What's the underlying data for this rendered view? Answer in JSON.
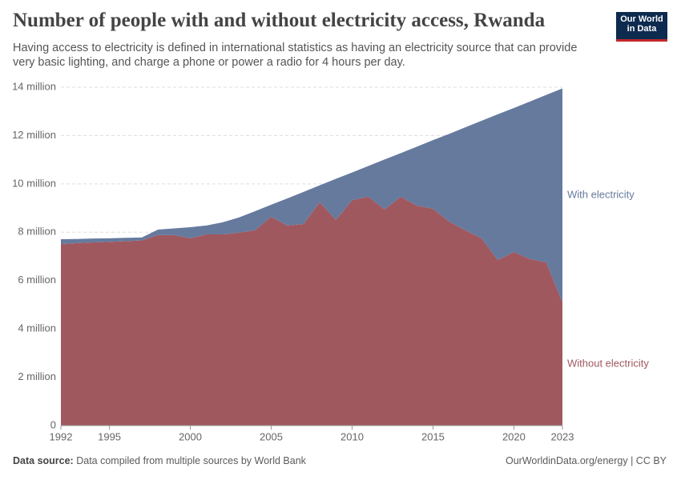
{
  "chart_data": {
    "type": "stacked-area",
    "title": "Number of people with and without electricity access, Rwanda",
    "subtitle": "Having access to electricity is defined in international statistics as having an electricity source that can provide very basic lighting, and charge a phone or power a radio for 4 hours per day.",
    "logo": [
      "Our World",
      "in Data"
    ],
    "source_label": "Data source:",
    "source": "Data compiled from multiple sources by World Bank",
    "credit": "OurWorldinData.org/energy | CC BY",
    "x": [
      1992,
      1993,
      1994,
      1995,
      1996,
      1997,
      1998,
      1999,
      2000,
      2001,
      2002,
      2003,
      2004,
      2005,
      2006,
      2007,
      2008,
      2009,
      2010,
      2011,
      2012,
      2013,
      2014,
      2015,
      2016,
      2017,
      2018,
      2019,
      2020,
      2021,
      2022,
      2023
    ],
    "xlim": [
      1992,
      2023
    ],
    "xticks": [
      1992,
      1995,
      2000,
      2005,
      2010,
      2015,
      2020,
      2023
    ],
    "ylim": [
      0,
      14000000
    ],
    "yticks": [
      0,
      {
        "value": 2000000,
        "label": "2 million"
      },
      {
        "value": 4000000,
        "label": "4 million"
      },
      {
        "value": 6000000,
        "label": "6 million"
      },
      {
        "value": 8000000,
        "label": "8 million"
      },
      {
        "value": 10000000,
        "label": "10 million"
      },
      {
        "value": 12000000,
        "label": "12 million"
      },
      {
        "value": 14000000,
        "label": "14 million"
      }
    ],
    "grid": true,
    "series": [
      {
        "name": "Without electricity",
        "color": "#a0585f",
        "values": [
          7510000,
          7550000,
          7580000,
          7600000,
          7630000,
          7660000,
          7880000,
          7880000,
          7750000,
          7910000,
          7910000,
          7980000,
          8080000,
          8640000,
          8280000,
          8340000,
          9240000,
          8510000,
          9330000,
          9470000,
          8940000,
          9470000,
          9100000,
          8970000,
          8440000,
          8080000,
          7750000,
          6850000,
          7180000,
          6890000,
          6750000,
          5100000
        ]
      },
      {
        "name": "With electricity",
        "color": "#667a9e",
        "values": [
          200000,
          170000,
          160000,
          150000,
          140000,
          120000,
          230000,
          280000,
          460000,
          370000,
          500000,
          630000,
          790000,
          500000,
          1120000,
          1330000,
          700000,
          1700000,
          1140000,
          1270000,
          2070000,
          1800000,
          2440000,
          2840000,
          3630000,
          4260000,
          4860000,
          6030000,
          5960000,
          6520000,
          6930000,
          8850000
        ]
      }
    ]
  }
}
